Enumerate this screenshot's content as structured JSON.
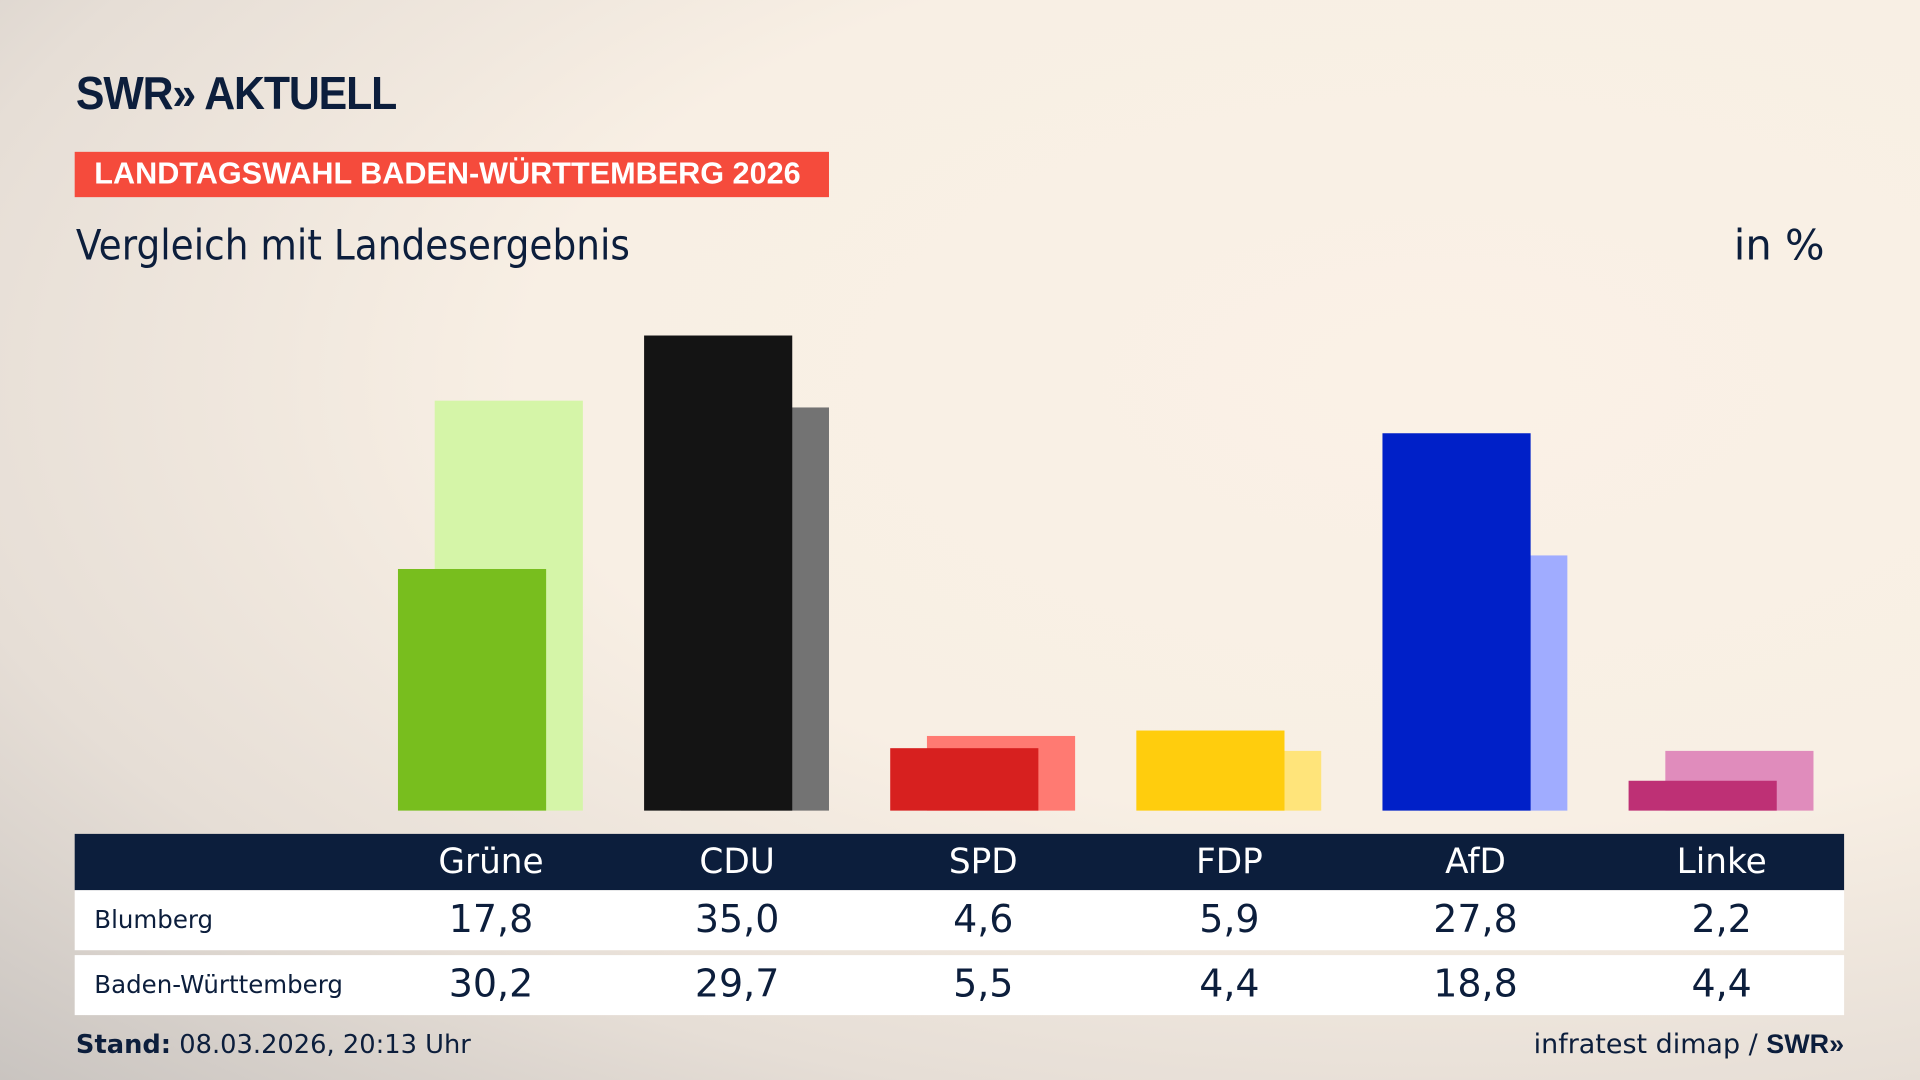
{
  "header": {
    "logo": "SWR» AKTUELL",
    "badge": "LANDTAGSWAHL BADEN-WÜRTTEMBERG 2026",
    "subtitle": "Vergleich mit Landesergebnis",
    "unit": "in %"
  },
  "footer": {
    "stand_label": "Stand:",
    "stand_value": "08.03.2026, 20:13 Uhr",
    "source": "infratest dimap /",
    "source_logo": "SWR»"
  },
  "table": {
    "rows": [
      {
        "label": "Blumberg",
        "values": [
          "17,8",
          "35,0",
          "4,6",
          "5,9",
          "27,8",
          "2,2"
        ]
      },
      {
        "label": "Baden-Württemberg",
        "values": [
          "30,2",
          "29,7",
          "5,5",
          "4,4",
          "18,8",
          "4,4"
        ]
      }
    ]
  },
  "chart_data": {
    "type": "bar",
    "title": "Vergleich mit Landesergebnis",
    "ylabel": "in %",
    "categories": [
      "Grüne",
      "CDU",
      "SPD",
      "FDP",
      "AfD",
      "Linke"
    ],
    "series": [
      {
        "name": "Blumberg",
        "values": [
          17.8,
          35.0,
          4.6,
          5.9,
          27.8,
          2.2
        ],
        "colors": [
          "#78be1e",
          "#141414",
          "#d7201f",
          "#ffcd0d",
          "#0020c8",
          "#be3075"
        ]
      },
      {
        "name": "Baden-Württemberg",
        "values": [
          30.2,
          29.7,
          5.5,
          4.4,
          18.8,
          4.4
        ],
        "colors": [
          "#d5f5a8",
          "#737373",
          "#ff7a72",
          "#ffe47a",
          "#a0acff",
          "#e08cbc"
        ]
      }
    ],
    "ylim": [
      0,
      35
    ],
    "grid": false
  },
  "colors": {
    "navy": "#0c1e3c",
    "badge": "#f54b3c"
  }
}
